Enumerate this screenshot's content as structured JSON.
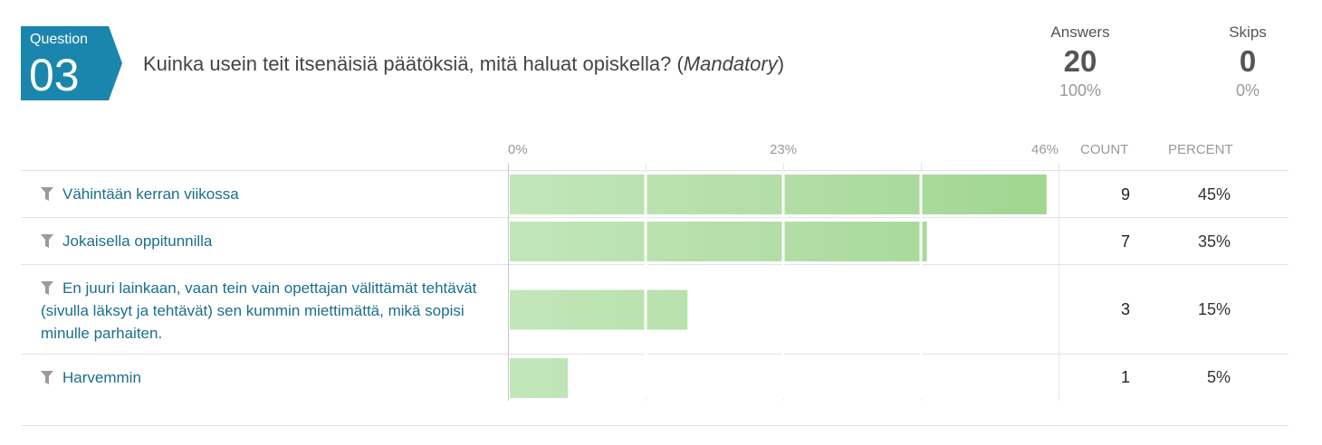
{
  "question": {
    "word": "Question",
    "number": "03",
    "text": "Kuinka usein teit itsenäisiä päätöksiä, mitä haluat opiskella? (",
    "mandatory": "Mandatory",
    "text_end": ")",
    "badge_color": "#1b86ad"
  },
  "stats": {
    "answers": {
      "label": "Answers",
      "value": "20",
      "percent": "100%"
    },
    "skips": {
      "label": "Skips",
      "value": "0",
      "percent": "0%"
    }
  },
  "table_headers": {
    "count": "COUNT",
    "percent": "PERCENT"
  },
  "chart_data": {
    "type": "bar",
    "orientation": "horizontal",
    "xlim": [
      0,
      46
    ],
    "ticks": [
      "0%",
      "23%",
      "46%"
    ],
    "categories": [
      "Vähintään kerran viikossa",
      "Jokaisella oppitunnilla",
      "En juuri lainkaan, vaan tein vain opettajan välittämät tehtävät (sivulla läksyt ja tehtävät) sen kummin miettimättä, mikä sopisi minulle parhaiten.",
      "Harvemmin"
    ],
    "values": [
      45,
      35,
      15,
      5
    ],
    "counts": [
      "9",
      "7",
      "3",
      "1"
    ],
    "percents": [
      "45%",
      "35%",
      "15%",
      "5%"
    ],
    "bar_color_light": "#c2e6b9",
    "bar_color_dark": "#9fd68f",
    "grid": true
  }
}
